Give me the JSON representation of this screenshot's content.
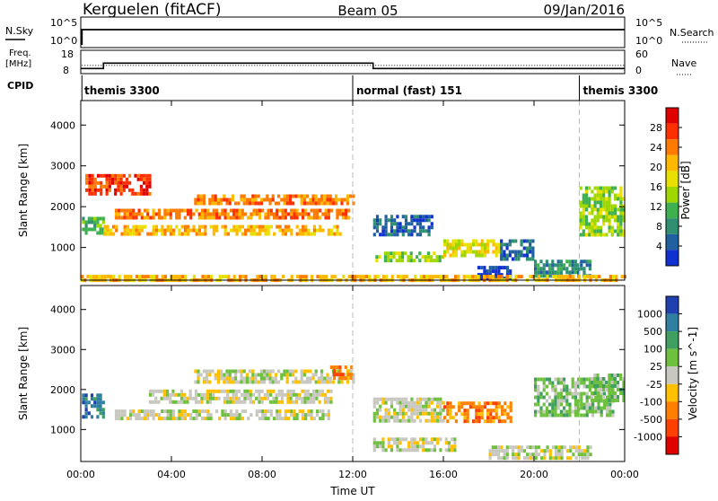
{
  "header": {
    "radar": "Kerguelen (fitACF)",
    "beam": "Beam 05",
    "date": "09/Jan/2016"
  },
  "nsky_panel": {
    "left_label": "N.Sky",
    "right_label": "N.Search",
    "left_ticks": [
      "10^5",
      "10^0"
    ],
    "right_ticks": [
      "10^5",
      "10^0"
    ]
  },
  "freq_panel": {
    "left_label_1": "Freq.",
    "left_label_2": "[MHz]",
    "right_label": "Nave",
    "left_ticks": [
      "18",
      "8"
    ],
    "right_ticks": [
      "60",
      "0"
    ],
    "freq_steps": [
      {
        "start_hour": 0.0,
        "end_hour": 1.0,
        "value": 10.2
      },
      {
        "start_hour": 1.0,
        "end_hour": 12.9,
        "value": 12.5
      },
      {
        "start_hour": 12.9,
        "end_hour": 24.0,
        "value": 10.2
      }
    ],
    "nave_dotted_value": 11.5
  },
  "cpid": {
    "label": "CPID",
    "segments": [
      {
        "text": "themis 3300",
        "start_hour": 0.0
      },
      {
        "text": "normal (fast) 151",
        "start_hour": 12.0
      },
      {
        "text": "themis 3300",
        "start_hour": 22.0
      }
    ]
  },
  "axes": {
    "ylabel": "Slant Range [km]",
    "xlabel": "Time UT",
    "y_range": [
      200,
      4600
    ],
    "y_ticks": [
      "4000",
      "3000",
      "2000",
      "1000"
    ],
    "x_range": [
      0,
      24
    ],
    "x_ticks": [
      "00:00",
      "04:00",
      "08:00",
      "12:00",
      "16:00",
      "20:00",
      "00:00"
    ]
  },
  "power_colorbar": {
    "label": "Power [dB]",
    "ticks": [
      "28",
      "24",
      "20",
      "16",
      "12",
      "8",
      "4"
    ],
    "colors": [
      "#e00000",
      "#ff3000",
      "#ff7a00",
      "#ffb800",
      "#e8e000",
      "#9fd800",
      "#3fb050",
      "#2f8f70",
      "#2060a0",
      "#1030d0"
    ]
  },
  "velocity_colorbar": {
    "label": "Velocity [m s^-1]",
    "ticks": [
      "1000",
      "500",
      "100",
      "25",
      "-25",
      "-100",
      "-500",
      "-1000"
    ],
    "colors": [
      "#2040b0",
      "#2f7fa0",
      "#3f9f60",
      "#70c040",
      "#c8c8c0",
      "#ffc000",
      "#ff8000",
      "#ff4000",
      "#e00000"
    ]
  },
  "chart_data": [
    {
      "type": "heatmap",
      "name": "power",
      "x_units": "hours UT",
      "y_units": "km",
      "bands": [
        {
          "x": [
            0.05,
            1.0
          ],
          "y": [
            1350,
            1750
          ],
          "level": 6
        },
        {
          "x": [
            1.0,
            11.5
          ],
          "y": [
            1350,
            1550
          ],
          "level": 3
        },
        {
          "x": [
            1.5,
            11.8
          ],
          "y": [
            1750,
            1950
          ],
          "level": 2
        },
        {
          "x": [
            5.0,
            12.0
          ],
          "y": [
            2100,
            2300
          ],
          "level": 2
        },
        {
          "x": [
            0.2,
            3.0
          ],
          "y": [
            2300,
            2800
          ],
          "level": 1
        },
        {
          "x": [
            12.9,
            15.5
          ],
          "y": [
            1350,
            1800
          ],
          "level": 8
        },
        {
          "x": [
            13.0,
            16.0
          ],
          "y": [
            700,
            900
          ],
          "level": 5
        },
        {
          "x": [
            16.0,
            18.5
          ],
          "y": [
            800,
            1200
          ],
          "level": 4
        },
        {
          "x": [
            17.5,
            19.0
          ],
          "y": [
            250,
            550
          ],
          "level": 9
        },
        {
          "x": [
            18.5,
            20.0
          ],
          "y": [
            700,
            1200
          ],
          "level": 8
        },
        {
          "x": [
            20.0,
            22.5
          ],
          "y": [
            300,
            700
          ],
          "level": 7
        },
        {
          "x": [
            22.0,
            24.0
          ],
          "y": [
            1300,
            2500
          ],
          "level": 5
        },
        {
          "x": [
            0.0,
            24.0
          ],
          "y": [
            200,
            330
          ],
          "level": 3
        }
      ]
    },
    {
      "type": "heatmap",
      "name": "velocity",
      "x_units": "hours UT",
      "y_units": "km",
      "bands": [
        {
          "x": [
            0.05,
            1.0
          ],
          "y": [
            1300,
            1900
          ],
          "level": 1
        },
        {
          "x": [
            3.0,
            11.0
          ],
          "y": [
            1700,
            2000
          ],
          "level": 4
        },
        {
          "x": [
            5.0,
            12.0
          ],
          "y": [
            2200,
            2500
          ],
          "level": 4
        },
        {
          "x": [
            1.5,
            11.0
          ],
          "y": [
            1300,
            1500
          ],
          "level": 4
        },
        {
          "x": [
            12.9,
            16.0
          ],
          "y": [
            1200,
            1800
          ],
          "level": 4
        },
        {
          "x": [
            12.9,
            16.5
          ],
          "y": [
            500,
            800
          ],
          "level": 4
        },
        {
          "x": [
            16.0,
            19.0
          ],
          "y": [
            1200,
            1700
          ],
          "level": 6
        },
        {
          "x": [
            18.0,
            22.5
          ],
          "y": [
            300,
            600
          ],
          "level": 4
        },
        {
          "x": [
            20.0,
            23.5
          ],
          "y": [
            1400,
            2300
          ],
          "level": 3
        },
        {
          "x": [
            22.5,
            24.0
          ],
          "y": [
            1700,
            2400
          ],
          "level": 3
        },
        {
          "x": [
            11.0,
            12.0
          ],
          "y": [
            2300,
            2600
          ],
          "level": 6
        }
      ]
    }
  ]
}
